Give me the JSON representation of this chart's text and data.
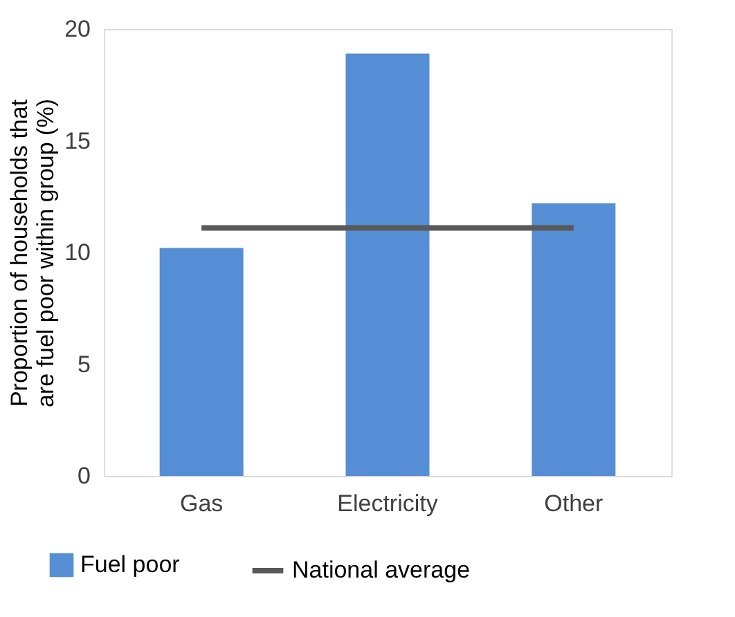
{
  "chart_data": {
    "type": "bar",
    "categories": [
      "Gas",
      "Electricity",
      "Other"
    ],
    "ylabel": "Proportion of households that are fuel poor within group (%)",
    "ylim": [
      0,
      20
    ],
    "yticks": [
      0,
      5,
      10,
      15,
      20
    ],
    "grid": false,
    "legend": "bottom",
    "series": [
      {
        "name": "Fuel poor",
        "color": "#558ed5",
        "values": [
          10.2,
          18.9,
          12.2
        ]
      },
      {
        "name": "National average",
        "type": "line",
        "color": "#595959",
        "values": [
          11.1,
          11.1,
          11.1
        ]
      }
    ]
  }
}
